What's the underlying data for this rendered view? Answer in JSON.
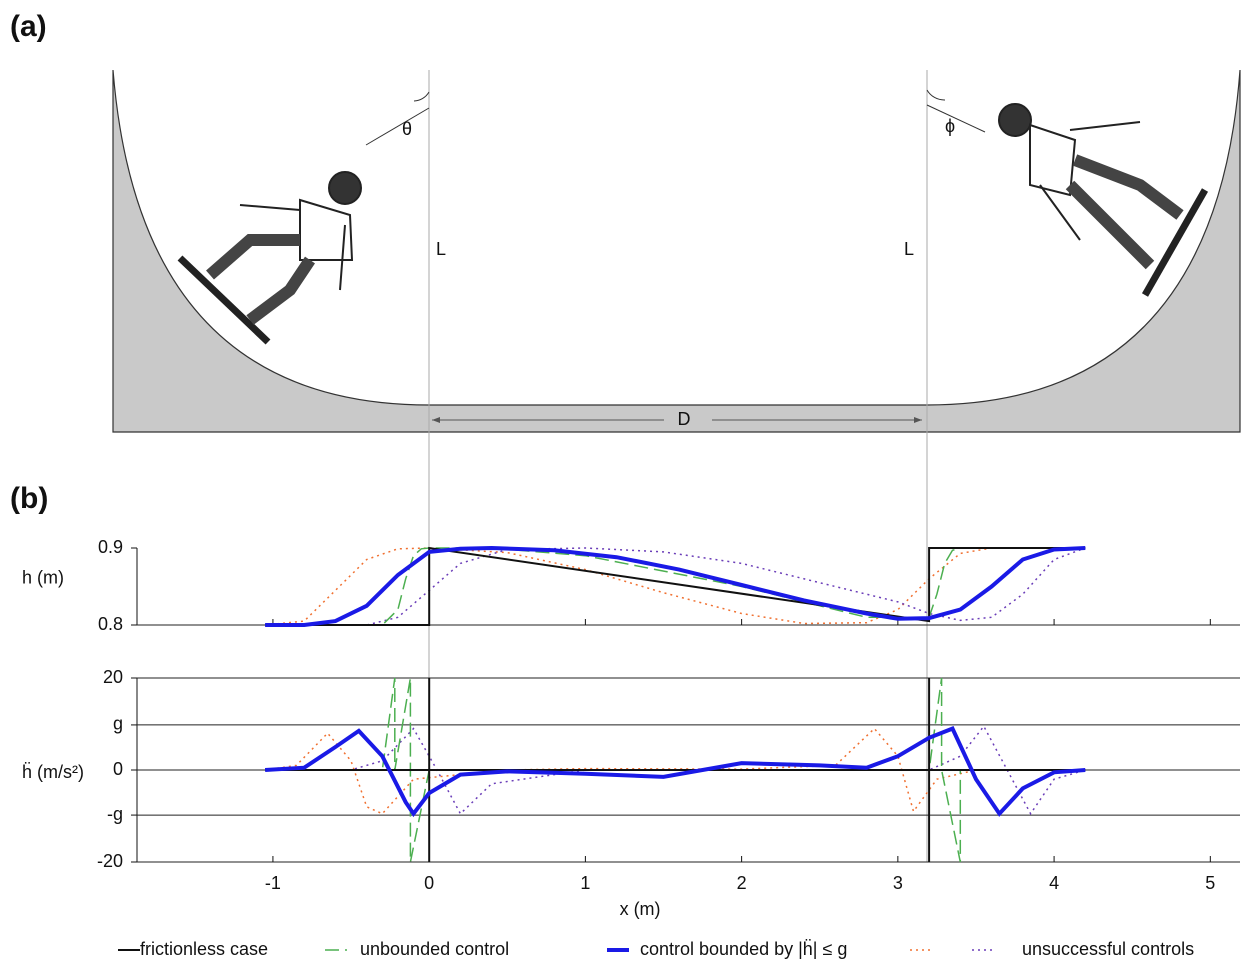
{
  "panels": [
    "(a)",
    "(b)"
  ],
  "diagram": {
    "angle_left": "θ",
    "angle_right": "ϕ",
    "length_left": "L",
    "length_right": "L",
    "distance": "D"
  },
  "chart_data": [
    {
      "type": "line",
      "ylabel": "h (m)",
      "xlim": [
        -1.87,
        5.19
      ],
      "ylim": [
        0.8,
        0.9
      ],
      "yticks": [
        0.8,
        0.9
      ],
      "series": [
        {
          "name": "frictionless case",
          "color": "#111111",
          "style": "solid",
          "width": 2,
          "x": [
            -1.05,
            0,
            0,
            3.2,
            3.2,
            4.2
          ],
          "values": [
            0.8,
            0.8,
            0.9,
            0.805,
            0.9,
            0.9
          ]
        },
        {
          "name": "unbounded control",
          "color": "#4caf50",
          "style": "dashed",
          "width": 1.5,
          "x": [
            -1.05,
            -0.3,
            -0.2,
            -0.15,
            -0.1,
            -0.05,
            0,
            0.4,
            1,
            2,
            2.8,
            3.2,
            3.25,
            3.3,
            3.35,
            3.4,
            4.2
          ],
          "values": [
            0.8,
            0.8,
            0.82,
            0.86,
            0.89,
            0.899,
            0.9,
            0.9,
            0.89,
            0.85,
            0.81,
            0.81,
            0.84,
            0.88,
            0.897,
            0.9,
            0.9
          ]
        },
        {
          "name": "control bounded by |ḧ| ≤ g",
          "color": "#1a1ae6",
          "style": "solid",
          "width": 4,
          "x": [
            -1.05,
            -0.8,
            -0.6,
            -0.4,
            -0.2,
            0,
            0.2,
            0.4,
            0.8,
            1.2,
            1.6,
            2,
            2.4,
            2.8,
            3.0,
            3.2,
            3.4,
            3.6,
            3.8,
            4.0,
            4.2
          ],
          "values": [
            0.8,
            0.8,
            0.805,
            0.825,
            0.865,
            0.895,
            0.899,
            0.9,
            0.897,
            0.888,
            0.872,
            0.852,
            0.832,
            0.815,
            0.808,
            0.809,
            0.82,
            0.85,
            0.885,
            0.898,
            0.9
          ]
        },
        {
          "name": "unsuccessful controls",
          "color": "#f07030",
          "style": "dotted",
          "width": 1.5,
          "x": [
            -1.05,
            -0.8,
            -0.6,
            -0.4,
            -0.2,
            0,
            0.5,
            1,
            1.5,
            2,
            2.4,
            2.8,
            3.0,
            3.2,
            3.4,
            3.6,
            4.2
          ],
          "values": [
            0.8,
            0.805,
            0.845,
            0.885,
            0.899,
            0.9,
            0.894,
            0.872,
            0.842,
            0.815,
            0.802,
            0.803,
            0.82,
            0.86,
            0.893,
            0.9,
            0.9
          ]
        },
        {
          "name": "unsuccessful controls",
          "color": "#6a3db8",
          "style": "dotted",
          "width": 1.5,
          "x": [
            -1.05,
            -0.4,
            -0.2,
            0,
            0.2,
            0.5,
            1,
            1.5,
            2,
            2.5,
            3,
            3.2,
            3.4,
            3.6,
            3.8,
            4.0,
            4.2
          ],
          "values": [
            0.8,
            0.8,
            0.81,
            0.845,
            0.88,
            0.898,
            0.9,
            0.895,
            0.88,
            0.855,
            0.83,
            0.815,
            0.806,
            0.81,
            0.84,
            0.885,
            0.9
          ]
        }
      ]
    },
    {
      "type": "line",
      "ylabel": "ḧ (m/s²)",
      "xlabel": "x (m)",
      "xlim": [
        -1.87,
        5.19
      ],
      "xticks": [
        -1,
        0,
        1,
        2,
        3,
        4,
        5
      ],
      "ylim": [
        -20,
        20
      ],
      "yticks": [
        -20,
        {
          "value": -9.8,
          "label": "-g"
        },
        0,
        {
          "value": 9.8,
          "label": "g"
        },
        20
      ],
      "grid": true,
      "series": [
        {
          "name": "frictionless case",
          "color": "#111111",
          "style": "solid",
          "width": 2,
          "x": [
            -1.05,
            0,
            0,
            0,
            0,
            3.2,
            3.2,
            3.2,
            3.2,
            4.2
          ],
          "values": [
            0,
            0,
            20,
            -20,
            0,
            0,
            -20,
            20,
            0,
            0
          ]
        },
        {
          "name": "unbounded control",
          "color": "#4caf50",
          "style": "dashed",
          "width": 1.5,
          "x": [
            -1.05,
            -0.3,
            -0.22,
            -0.22,
            -0.12,
            -0.12,
            0,
            3.2,
            3.28,
            3.28,
            3.4,
            3.4,
            3.5,
            4.2
          ],
          "values": [
            0,
            0,
            20,
            0,
            20,
            -20,
            0,
            0,
            20,
            0,
            -20,
            0,
            0,
            0
          ]
        },
        {
          "name": "control bounded by |ḧ| ≤ g",
          "color": "#1a1ae6",
          "style": "solid",
          "width": 4,
          "x": [
            -1.05,
            -0.8,
            -0.6,
            -0.45,
            -0.3,
            -0.15,
            -0.1,
            0,
            0.2,
            0.5,
            1,
            1.5,
            2,
            2.5,
            2.8,
            3.0,
            3.2,
            3.35,
            3.5,
            3.65,
            3.8,
            4,
            4.2
          ],
          "values": [
            0,
            0.5,
            5,
            8.5,
            3,
            -7,
            -9.5,
            -5,
            -1,
            -0.3,
            -0.8,
            -1.5,
            1.5,
            1,
            0.5,
            3,
            7,
            9,
            -2,
            -9.5,
            -4,
            -0.5,
            0
          ]
        },
        {
          "name": "unsuccessful controls",
          "color": "#f07030",
          "style": "dotted",
          "width": 1.5,
          "x": [
            -1.05,
            -0.85,
            -0.65,
            -0.5,
            -0.4,
            -0.3,
            -0.1,
            0.5,
            1,
            2,
            2.6,
            2.85,
            3.0,
            3.1,
            3.25,
            3.5,
            4.2
          ],
          "values": [
            0,
            1,
            8,
            2,
            -8,
            -9.5,
            -2,
            0,
            0.3,
            0.2,
            1,
            9,
            3,
            -9,
            -2,
            0,
            0
          ]
        },
        {
          "name": "unsuccessful controls",
          "color": "#6a3db8",
          "style": "dotted",
          "width": 1.5,
          "x": [
            -1.05,
            -0.5,
            -0.3,
            -0.1,
            0.05,
            0.2,
            0.4,
            1,
            2,
            3.2,
            3.4,
            3.55,
            3.7,
            3.85,
            4.0,
            4.2
          ],
          "values": [
            0,
            0,
            2,
            9,
            0,
            -9.5,
            -3,
            0,
            0,
            0,
            3,
            9.5,
            0,
            -9.5,
            -2,
            0
          ]
        }
      ]
    }
  ]
}
